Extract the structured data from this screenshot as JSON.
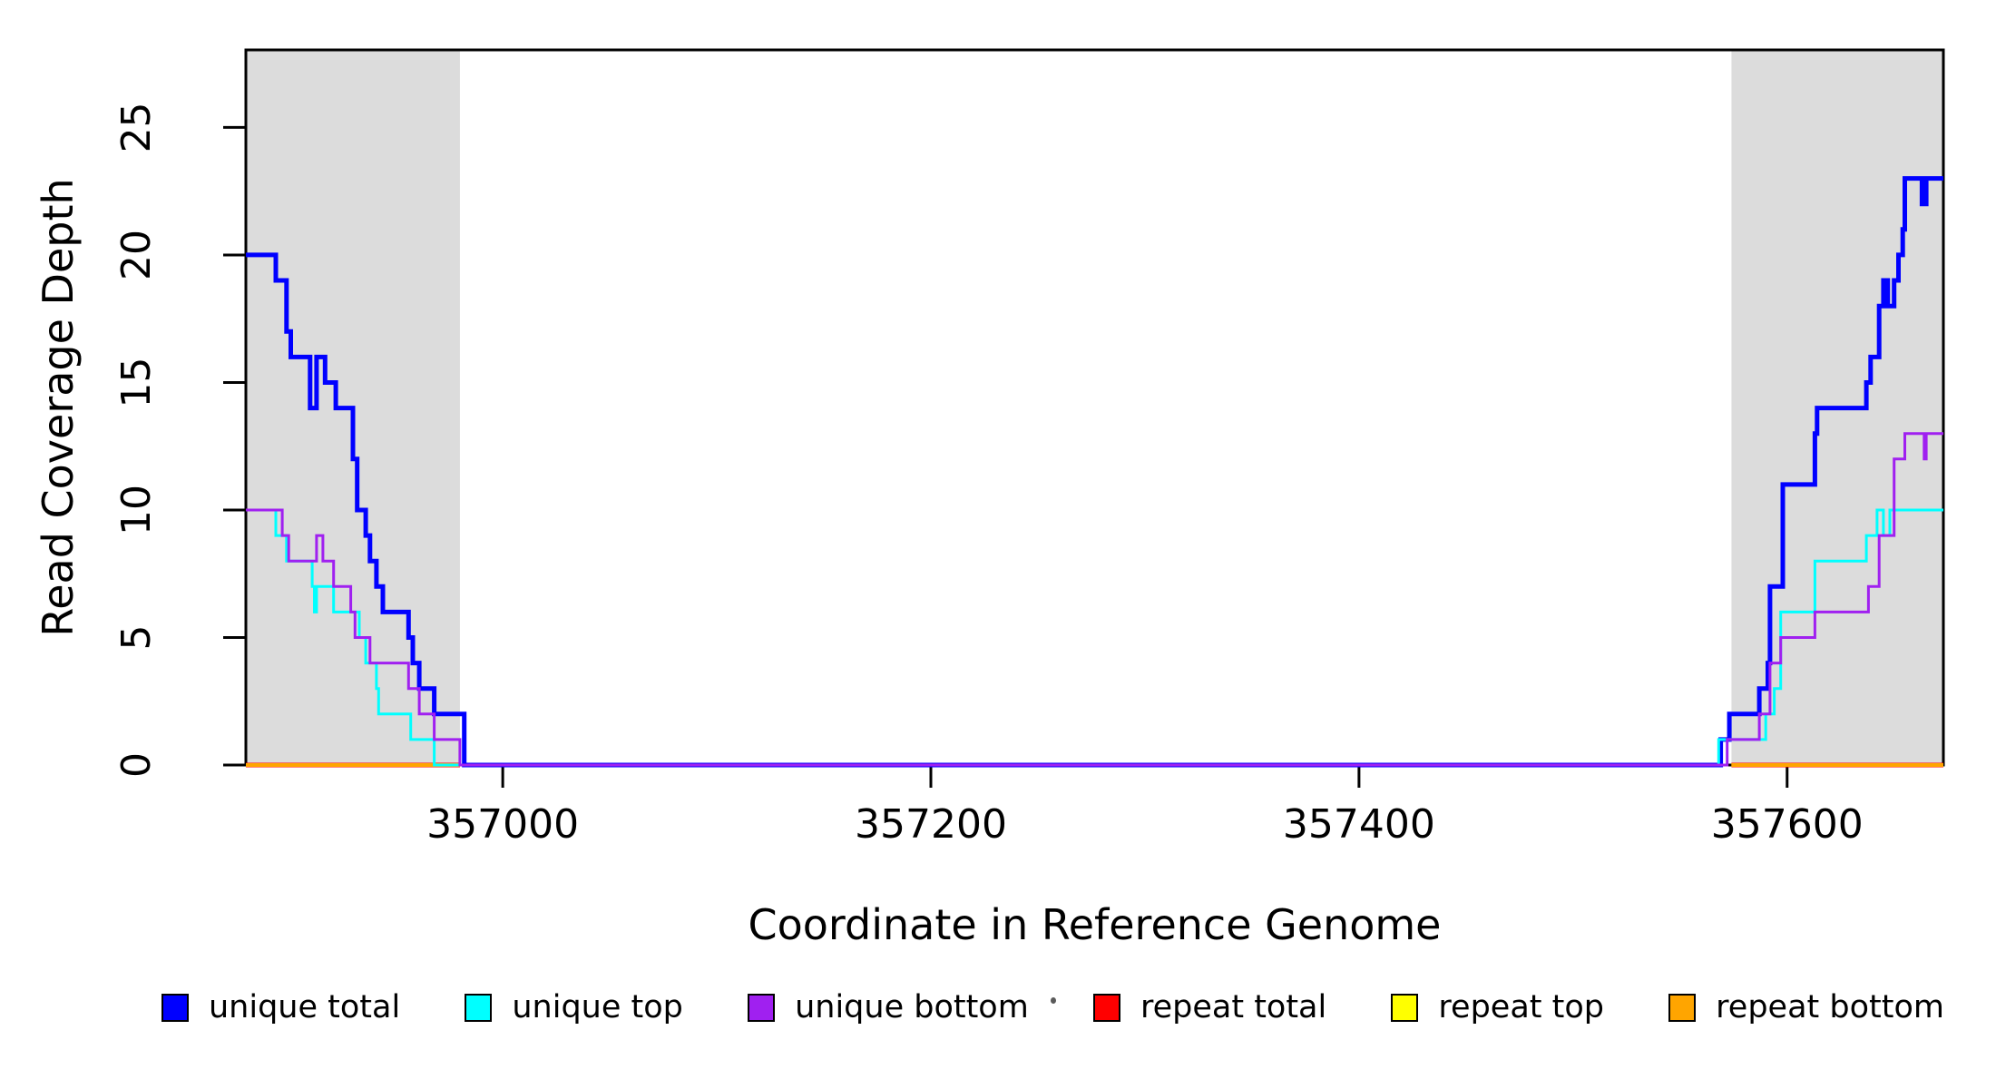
{
  "figure": {
    "background": "#FFFFFF"
  },
  "axes": {
    "xlabel": "Coordinate in Reference Genome",
    "ylabel": "Read Coverage Depth",
    "x_ticks": [
      357000,
      357200,
      357400,
      357600
    ],
    "y_ticks": [
      0,
      5,
      10,
      15,
      20,
      25
    ],
    "xlim": [
      356880,
      357673
    ],
    "ylim": [
      0,
      28.04
    ],
    "axis_color": "#000000"
  },
  "chart_data": {
    "type": "line",
    "style": "step",
    "title": "",
    "xlabel": "Coordinate in Reference Genome",
    "ylabel": "Read Coverage Depth",
    "xlim": [
      356880,
      357673
    ],
    "ylim": [
      0,
      28.04
    ],
    "grid": false,
    "legend_position": "bottom",
    "shaded_regions": [
      {
        "name": "repeat-region-left",
        "x0": 356880,
        "x1": 356980,
        "color": "#DCDCDC"
      },
      {
        "name": "repeat-region-right",
        "x0": 357574,
        "x1": 357673,
        "color": "#DCDCDC"
      }
    ],
    "flat_series": [
      {
        "name": "repeat total",
        "color": "#FF0000",
        "width": 5,
        "value": 0,
        "segments": [
          [
            356880,
            356980
          ],
          [
            357574,
            357673
          ]
        ]
      },
      {
        "name": "repeat top",
        "color": "#FFFF00",
        "width": 4,
        "value": 0,
        "segments": [
          [
            356880,
            356980
          ],
          [
            357574,
            357673
          ]
        ]
      },
      {
        "name": "repeat bottom",
        "color": "#FFA500",
        "width": 4,
        "value": 0,
        "segments": [
          [
            356880,
            356980
          ],
          [
            357574,
            357673
          ]
        ]
      }
    ],
    "series": [
      {
        "name": "unique total",
        "color": "#0000FF",
        "width": 5,
        "steps": [
          [
            356880,
            20
          ],
          [
            356894,
            19
          ],
          [
            356899,
            17
          ],
          [
            356901,
            16
          ],
          [
            356910,
            14
          ],
          [
            356913,
            16
          ],
          [
            356917,
            15
          ],
          [
            356922,
            14
          ],
          [
            356930,
            12
          ],
          [
            356932,
            10
          ],
          [
            356936,
            9
          ],
          [
            356938,
            8
          ],
          [
            356941,
            7
          ],
          [
            356944,
            6
          ],
          [
            356956,
            5
          ],
          [
            356958,
            4
          ],
          [
            356961,
            3
          ],
          [
            356968,
            2
          ],
          [
            356982,
            0
          ],
          [
            357569,
            1
          ],
          [
            357573,
            2
          ],
          [
            357587,
            3
          ],
          [
            357591,
            4
          ],
          [
            357592,
            7
          ],
          [
            357598,
            11
          ],
          [
            357613,
            13
          ],
          [
            357614,
            14
          ],
          [
            357637,
            15
          ],
          [
            357639,
            16
          ],
          [
            357643,
            18
          ],
          [
            357645,
            19
          ],
          [
            357647,
            18
          ],
          [
            357650,
            19
          ],
          [
            357652,
            20
          ],
          [
            357654,
            21
          ],
          [
            357655,
            23
          ],
          [
            357663,
            22
          ],
          [
            357665,
            23
          ]
        ]
      },
      {
        "name": "unique top",
        "color": "#00FFFF",
        "width": 3,
        "steps": [
          [
            356880,
            10
          ],
          [
            356894,
            9
          ],
          [
            356899,
            8
          ],
          [
            356911,
            7
          ],
          [
            356912,
            6
          ],
          [
            356913,
            7
          ],
          [
            356921,
            6
          ],
          [
            356933,
            5
          ],
          [
            356936,
            4
          ],
          [
            356941,
            3
          ],
          [
            356942,
            2
          ],
          [
            356957,
            1
          ],
          [
            356968,
            0
          ],
          [
            357568,
            1
          ],
          [
            357590,
            2
          ],
          [
            357594,
            3
          ],
          [
            357597,
            6
          ],
          [
            357613,
            8
          ],
          [
            357637,
            9
          ],
          [
            357642,
            10
          ],
          [
            357645,
            9
          ],
          [
            357648,
            10
          ]
        ]
      },
      {
        "name": "unique bottom",
        "color": "#A020F0",
        "width": 3,
        "steps": [
          [
            356880,
            10
          ],
          [
            356897,
            9
          ],
          [
            356900,
            8
          ],
          [
            356913,
            9
          ],
          [
            356916,
            8
          ],
          [
            356921,
            7
          ],
          [
            356929,
            6
          ],
          [
            356931,
            5
          ],
          [
            356938,
            4
          ],
          [
            356956,
            3
          ],
          [
            356961,
            2
          ],
          [
            356968,
            1
          ],
          [
            356980,
            0
          ],
          [
            357572,
            1
          ],
          [
            357587,
            2
          ],
          [
            357592,
            4
          ],
          [
            357597,
            5
          ],
          [
            357613,
            6
          ],
          [
            357638,
            7
          ],
          [
            357643,
            9
          ],
          [
            357650,
            12
          ],
          [
            357655,
            13
          ],
          [
            357664,
            12
          ],
          [
            357665,
            13
          ]
        ]
      }
    ]
  },
  "legend": {
    "items": [
      {
        "label": "unique total",
        "color": "#0000FF"
      },
      {
        "label": "unique top",
        "color": "#00FFFF"
      },
      {
        "label": "unique bottom",
        "color": "#A020F0"
      },
      {
        "label": "repeat total",
        "color": "#FF0000"
      },
      {
        "label": "repeat top",
        "color": "#FFFF00"
      },
      {
        "label": "repeat bottom",
        "color": "#FFA500"
      }
    ]
  }
}
